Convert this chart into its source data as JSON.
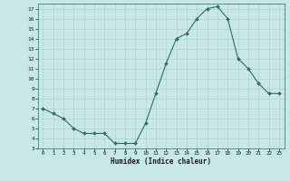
{
  "x": [
    0,
    1,
    2,
    3,
    4,
    5,
    6,
    7,
    8,
    9,
    10,
    11,
    12,
    13,
    14,
    15,
    16,
    17,
    18,
    19,
    20,
    21,
    22,
    23
  ],
  "y": [
    7.0,
    6.5,
    6.0,
    5.0,
    4.5,
    4.5,
    4.5,
    3.5,
    3.5,
    3.5,
    5.5,
    8.5,
    11.5,
    14.0,
    14.5,
    16.0,
    17.0,
    17.2,
    16.0,
    12.0,
    11.0,
    9.5,
    8.5,
    8.5
  ],
  "xlabel": "Humidex (Indice chaleur)",
  "ylim": [
    3,
    17.5
  ],
  "xlim": [
    -0.5,
    23.5
  ],
  "yticks": [
    3,
    4,
    5,
    6,
    7,
    8,
    9,
    10,
    11,
    12,
    13,
    14,
    15,
    16,
    17
  ],
  "xticks": [
    0,
    1,
    2,
    3,
    4,
    5,
    6,
    7,
    8,
    9,
    10,
    11,
    12,
    13,
    14,
    15,
    16,
    17,
    18,
    19,
    20,
    21,
    22,
    23
  ],
  "line_color": "#2d6e5e",
  "marker_color": "#2d6e5e",
  "bg_color": "#c8e8e8",
  "grid_color": "#a8cccc"
}
